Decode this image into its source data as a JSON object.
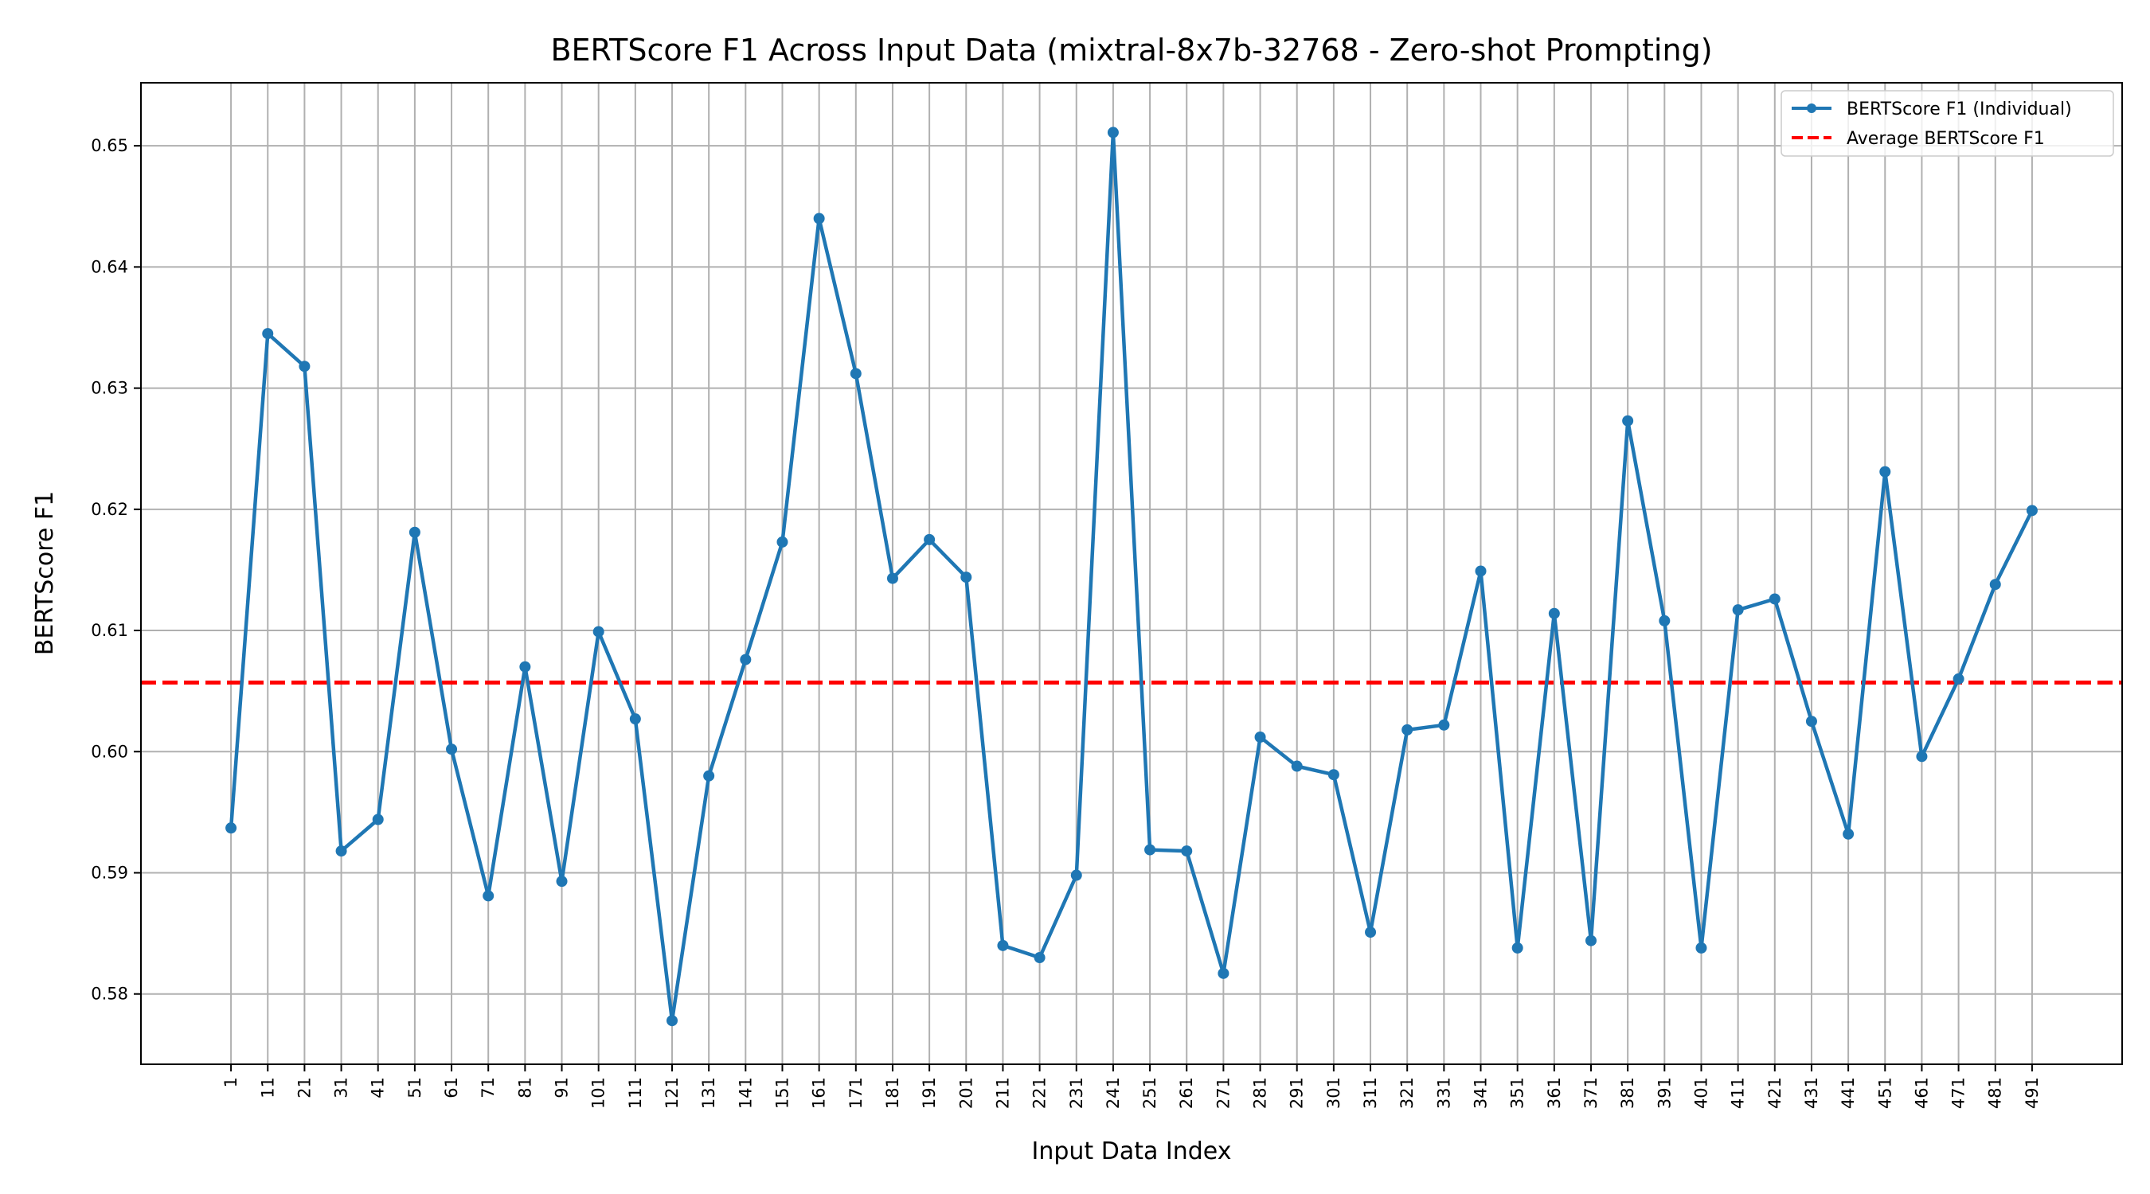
{
  "chart_data": {
    "type": "line",
    "title": "BERTScore F1 Across Input Data (mixtral-8x7b-32768 - Zero-shot Prompting)",
    "xlabel": "Input Data Index",
    "ylabel": "BERTScore F1",
    "x": [
      1,
      11,
      21,
      31,
      41,
      51,
      61,
      71,
      81,
      91,
      101,
      111,
      121,
      131,
      141,
      151,
      161,
      171,
      181,
      191,
      201,
      211,
      221,
      231,
      241,
      251,
      261,
      271,
      281,
      291,
      301,
      311,
      321,
      331,
      341,
      351,
      361,
      371,
      381,
      391,
      401,
      411,
      421,
      431,
      441,
      451,
      461,
      471,
      481,
      491
    ],
    "x_tick_labels": [
      "1",
      "11",
      "21",
      "31",
      "41",
      "51",
      "61",
      "71",
      "81",
      "91",
      "101",
      "111",
      "121",
      "131",
      "141",
      "151",
      "161",
      "171",
      "181",
      "191",
      "201",
      "211",
      "221",
      "231",
      "241",
      "251",
      "261",
      "271",
      "281",
      "291",
      "301",
      "311",
      "321",
      "331",
      "341",
      "351",
      "361",
      "371",
      "381",
      "391",
      "401",
      "411",
      "421",
      "431",
      "441",
      "451",
      "461",
      "471",
      "481",
      "491"
    ],
    "xlim": [
      -23.5,
      515.5
    ],
    "ylim": [
      0.5742,
      0.6552
    ],
    "y_ticks": [
      0.58,
      0.59,
      0.6,
      0.61,
      0.62,
      0.63,
      0.64,
      0.65
    ],
    "y_tick_labels": [
      "0.58",
      "0.59",
      "0.60",
      "0.61",
      "0.62",
      "0.63",
      "0.64",
      "0.65"
    ],
    "grid": true,
    "legend_position": "top-right",
    "series": [
      {
        "name": "BERTScore F1 (Individual)",
        "style": "line-with-markers",
        "color": "#1f77b4",
        "values": [
          0.5937,
          0.6345,
          0.6318,
          0.5918,
          0.5944,
          0.6181,
          0.6002,
          0.5881,
          0.607,
          0.5893,
          0.6099,
          0.6027,
          0.5778,
          0.598,
          0.6076,
          0.6173,
          0.644,
          0.6312,
          0.6143,
          0.6175,
          0.6144,
          0.584,
          0.583,
          0.5898,
          0.6511,
          0.5919,
          0.5918,
          0.5817,
          0.6012,
          0.5988,
          0.5981,
          0.5851,
          0.6018,
          0.6022,
          0.6149,
          0.5838,
          0.6114,
          0.5844,
          0.6273,
          0.6108,
          0.5838,
          0.6117,
          0.6126,
          0.6025,
          0.5932,
          0.6231,
          0.5996,
          0.606,
          0.6138,
          0.6199
        ]
      },
      {
        "name": "Average BERTScore F1",
        "style": "dashed-horizontal",
        "color": "#ff0000",
        "value": 0.6057
      }
    ]
  }
}
